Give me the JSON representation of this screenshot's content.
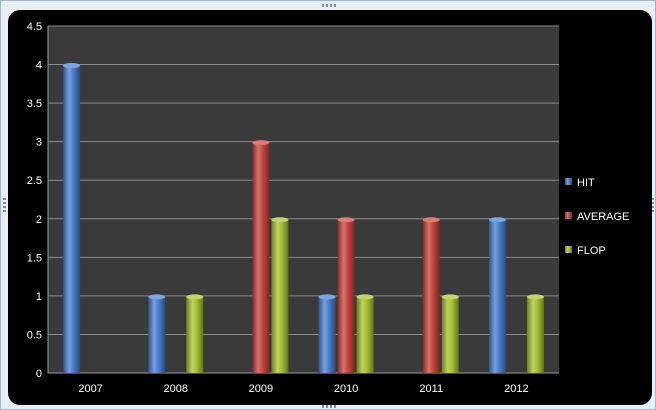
{
  "chart_data": {
    "type": "bar",
    "categories": [
      "2007",
      "2008",
      "2009",
      "2010",
      "2011",
      "2012"
    ],
    "series": [
      {
        "name": "HIT",
        "values": [
          4,
          1,
          0,
          1,
          0,
          2
        ],
        "color": "#4a7fd0"
      },
      {
        "name": "AVERAGE",
        "values": [
          0,
          0,
          3,
          2,
          2,
          0
        ],
        "color": "#c8453f"
      },
      {
        "name": "FLOP",
        "values": [
          0,
          1,
          2,
          1,
          1,
          1
        ],
        "color": "#a8c232"
      }
    ],
    "ylim": [
      0,
      4.5
    ],
    "yticks": [
      "0",
      "0.5",
      "1",
      "1.5",
      "2",
      "2.5",
      "3",
      "3.5",
      "4",
      "4.5"
    ],
    "ytick_values": [
      0,
      0.5,
      1,
      1.5,
      2,
      2.5,
      3,
      3.5,
      4,
      4.5
    ],
    "grid": true,
    "legend_position": "right",
    "plot_background": "#3a3a3a",
    "chart_background": "#000000"
  }
}
